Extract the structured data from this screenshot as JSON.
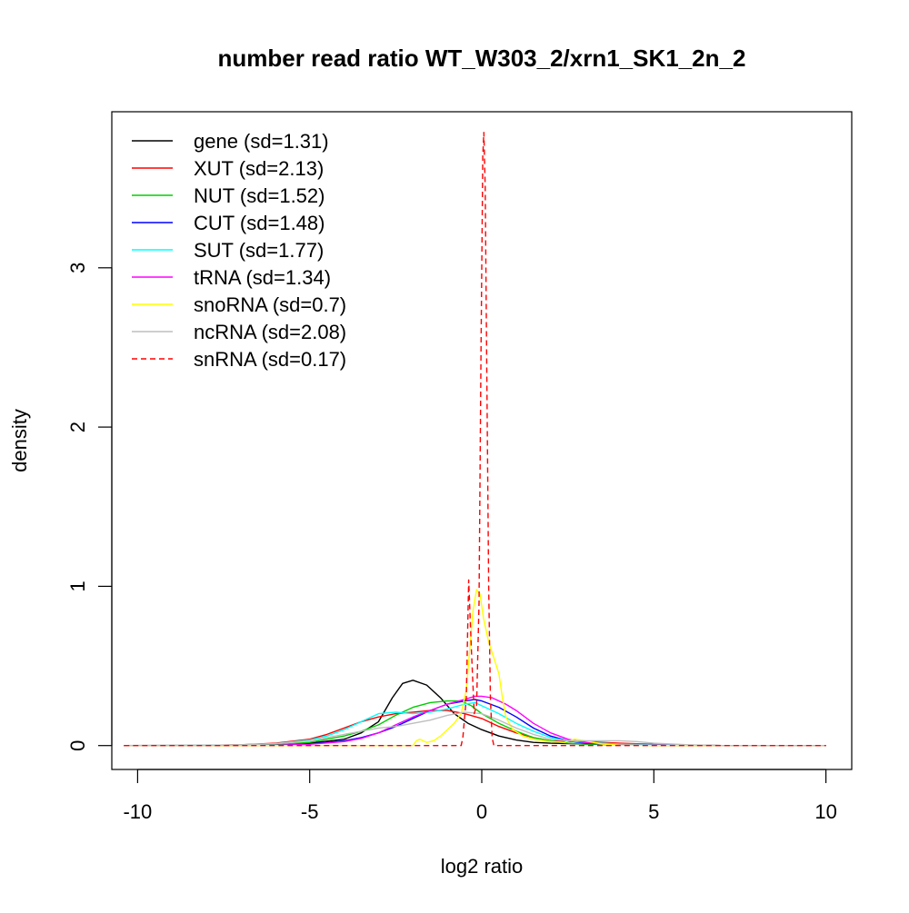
{
  "chart_data": {
    "type": "line",
    "title": "number read ratio WT_W303_2/xrn1_SK1_2n_2",
    "xlabel": "log2 ratio",
    "ylabel": "density",
    "xlim": [
      -10.75,
      10.75
    ],
    "ylim": [
      -0.15,
      3.98
    ],
    "x_ticks": [
      -10,
      -5,
      0,
      5,
      10
    ],
    "x_tick_labels": [
      "-10",
      "-5",
      "0",
      "5",
      "10"
    ],
    "y_ticks": [
      0,
      1,
      2,
      3
    ],
    "y_tick_labels": [
      "0",
      "1",
      "2",
      "3"
    ],
    "grid": false,
    "legend_position": "top-left",
    "series": [
      {
        "name": "gene (sd=1.31)",
        "color": "#000000",
        "dashed": false,
        "points": [
          [
            -10.4,
            0
          ],
          [
            -8,
            0
          ],
          [
            -6,
            0.003
          ],
          [
            -5,
            0.015
          ],
          [
            -4,
            0.04
          ],
          [
            -3.5,
            0.08
          ],
          [
            -3,
            0.15
          ],
          [
            -2.6,
            0.3
          ],
          [
            -2.3,
            0.39
          ],
          [
            -2,
            0.41
          ],
          [
            -1.6,
            0.38
          ],
          [
            -1.2,
            0.3
          ],
          [
            -0.8,
            0.2
          ],
          [
            -0.4,
            0.14
          ],
          [
            0,
            0.1
          ],
          [
            0.5,
            0.06
          ],
          [
            1,
            0.035
          ],
          [
            1.5,
            0.02
          ],
          [
            2,
            0.015
          ],
          [
            3,
            0.01
          ],
          [
            4,
            0.005
          ],
          [
            5,
            0.002
          ],
          [
            7,
            0
          ],
          [
            10,
            0
          ]
        ]
      },
      {
        "name": "XUT (sd=2.13)",
        "color": "#ff0000",
        "dashed": false,
        "points": [
          [
            -10.4,
            0
          ],
          [
            -8,
            0.002
          ],
          [
            -7,
            0.005
          ],
          [
            -6,
            0.015
          ],
          [
            -5,
            0.04
          ],
          [
            -4.5,
            0.07
          ],
          [
            -4,
            0.11
          ],
          [
            -3.5,
            0.15
          ],
          [
            -3,
            0.18
          ],
          [
            -2.5,
            0.2
          ],
          [
            -2,
            0.21
          ],
          [
            -1.5,
            0.22
          ],
          [
            -1,
            0.22
          ],
          [
            -0.5,
            0.2
          ],
          [
            0,
            0.17
          ],
          [
            0.5,
            0.12
          ],
          [
            1,
            0.08
          ],
          [
            1.5,
            0.05
          ],
          [
            2,
            0.03
          ],
          [
            2.5,
            0.025
          ],
          [
            3,
            0.025
          ],
          [
            3.5,
            0.02
          ],
          [
            4,
            0.015
          ],
          [
            5,
            0.008
          ],
          [
            6,
            0.003
          ],
          [
            7,
            0
          ],
          [
            10,
            0
          ]
        ]
      },
      {
        "name": "NUT (sd=1.52)",
        "color": "#00cd00",
        "dashed": false,
        "points": [
          [
            -10.4,
            0
          ],
          [
            -8,
            0
          ],
          [
            -6,
            0.005
          ],
          [
            -5,
            0.02
          ],
          [
            -4.5,
            0.04
          ],
          [
            -4,
            0.06
          ],
          [
            -3.5,
            0.09
          ],
          [
            -3,
            0.13
          ],
          [
            -2.5,
            0.19
          ],
          [
            -2,
            0.24
          ],
          [
            -1.5,
            0.27
          ],
          [
            -1,
            0.28
          ],
          [
            -0.6,
            0.28
          ],
          [
            -0.3,
            0.25
          ],
          [
            0,
            0.2
          ],
          [
            0.5,
            0.14
          ],
          [
            1,
            0.09
          ],
          [
            1.5,
            0.05
          ],
          [
            2,
            0.03
          ],
          [
            2.5,
            0.015
          ],
          [
            3,
            0.01
          ],
          [
            4,
            0.005
          ],
          [
            5,
            0.002
          ],
          [
            7,
            0
          ],
          [
            10,
            0
          ]
        ]
      },
      {
        "name": "CUT (sd=1.48)",
        "color": "#0000ff",
        "dashed": false,
        "points": [
          [
            -10.4,
            0
          ],
          [
            -8,
            0
          ],
          [
            -6,
            0.002
          ],
          [
            -5,
            0.01
          ],
          [
            -4,
            0.03
          ],
          [
            -3.5,
            0.05
          ],
          [
            -3,
            0.08
          ],
          [
            -2.5,
            0.12
          ],
          [
            -2,
            0.17
          ],
          [
            -1.5,
            0.22
          ],
          [
            -1,
            0.26
          ],
          [
            -0.5,
            0.28
          ],
          [
            -0.2,
            0.29
          ],
          [
            0,
            0.28
          ],
          [
            0.5,
            0.24
          ],
          [
            1,
            0.18
          ],
          [
            1.5,
            0.11
          ],
          [
            2,
            0.06
          ],
          [
            2.5,
            0.03
          ],
          [
            3,
            0.015
          ],
          [
            4,
            0.005
          ],
          [
            5,
            0.002
          ],
          [
            7,
            0
          ],
          [
            10,
            0
          ]
        ]
      },
      {
        "name": "SUT (sd=1.77)",
        "color": "#00ffff",
        "dashed": false,
        "points": [
          [
            -10.4,
            0
          ],
          [
            -8,
            0.001
          ],
          [
            -7,
            0.004
          ],
          [
            -6,
            0.012
          ],
          [
            -5,
            0.035
          ],
          [
            -4.5,
            0.06
          ],
          [
            -4,
            0.1
          ],
          [
            -3.5,
            0.15
          ],
          [
            -3,
            0.2
          ],
          [
            -2.5,
            0.21
          ],
          [
            -2,
            0.2
          ],
          [
            -1.5,
            0.21
          ],
          [
            -1,
            0.23
          ],
          [
            -0.5,
            0.26
          ],
          [
            -0.2,
            0.27
          ],
          [
            0,
            0.25
          ],
          [
            0.5,
            0.2
          ],
          [
            1,
            0.14
          ],
          [
            1.5,
            0.09
          ],
          [
            2,
            0.05
          ],
          [
            2.5,
            0.03
          ],
          [
            3,
            0.02
          ],
          [
            4,
            0.01
          ],
          [
            5,
            0.004
          ],
          [
            6,
            0.001
          ],
          [
            7,
            0
          ],
          [
            10,
            0
          ]
        ]
      },
      {
        "name": "tRNA (sd=1.34)",
        "color": "#ff00ff",
        "dashed": false,
        "points": [
          [
            -10.4,
            0
          ],
          [
            -8,
            0
          ],
          [
            -6,
            0.002
          ],
          [
            -5,
            0.008
          ],
          [
            -4,
            0.025
          ],
          [
            -3.5,
            0.045
          ],
          [
            -3,
            0.08
          ],
          [
            -2.5,
            0.13
          ],
          [
            -2,
            0.18
          ],
          [
            -1.5,
            0.22
          ],
          [
            -1,
            0.26
          ],
          [
            -0.5,
            0.29
          ],
          [
            -0.2,
            0.31
          ],
          [
            0,
            0.31
          ],
          [
            0.3,
            0.3
          ],
          [
            0.7,
            0.26
          ],
          [
            1,
            0.22
          ],
          [
            1.5,
            0.14
          ],
          [
            2,
            0.08
          ],
          [
            2.5,
            0.04
          ],
          [
            3,
            0.02
          ],
          [
            3.5,
            0.01
          ],
          [
            4,
            0.005
          ],
          [
            5,
            0.002
          ],
          [
            7,
            0
          ],
          [
            10,
            0
          ]
        ]
      },
      {
        "name": "snoRNA (sd=0.7)",
        "color": "#ffff00",
        "dashed": false,
        "points": [
          [
            -10.4,
            0
          ],
          [
            -6,
            0
          ],
          [
            -3,
            0
          ],
          [
            -2,
            0
          ],
          [
            -1.9,
            0.03
          ],
          [
            -1.8,
            0.04
          ],
          [
            -1.6,
            0.02
          ],
          [
            -1.4,
            0.03
          ],
          [
            -1.2,
            0.06
          ],
          [
            -1,
            0.1
          ],
          [
            -0.8,
            0.14
          ],
          [
            -0.6,
            0.2
          ],
          [
            -0.45,
            0.35
          ],
          [
            -0.35,
            0.6
          ],
          [
            -0.25,
            0.85
          ],
          [
            -0.15,
            0.98
          ],
          [
            -0.05,
            0.95
          ],
          [
            0.05,
            0.8
          ],
          [
            0.2,
            0.65
          ],
          [
            0.35,
            0.55
          ],
          [
            0.5,
            0.45
          ],
          [
            0.6,
            0.3
          ],
          [
            0.7,
            0.18
          ],
          [
            0.9,
            0.1
          ],
          [
            1.2,
            0.06
          ],
          [
            1.5,
            0.04
          ],
          [
            2,
            0.025
          ],
          [
            2.4,
            0.02
          ],
          [
            2.7,
            0.04
          ],
          [
            3,
            0.03
          ],
          [
            3.5,
            0.01
          ],
          [
            4,
            0.003
          ],
          [
            5,
            0
          ],
          [
            10,
            0
          ]
        ]
      },
      {
        "name": "ncRNA (sd=2.08)",
        "color": "#bebebe",
        "dashed": false,
        "points": [
          [
            -10.4,
            0
          ],
          [
            -8,
            0.001
          ],
          [
            -7,
            0.004
          ],
          [
            -6,
            0.012
          ],
          [
            -5,
            0.03
          ],
          [
            -4.5,
            0.05
          ],
          [
            -4,
            0.07
          ],
          [
            -3.5,
            0.09
          ],
          [
            -3,
            0.11
          ],
          [
            -2.5,
            0.12
          ],
          [
            -2,
            0.14
          ],
          [
            -1.5,
            0.16
          ],
          [
            -1,
            0.19
          ],
          [
            -0.5,
            0.21
          ],
          [
            0,
            0.2
          ],
          [
            0.5,
            0.16
          ],
          [
            1,
            0.11
          ],
          [
            1.5,
            0.07
          ],
          [
            2,
            0.04
          ],
          [
            2.5,
            0.03
          ],
          [
            3,
            0.03
          ],
          [
            4,
            0.03
          ],
          [
            4.5,
            0.025
          ],
          [
            5,
            0.015
          ],
          [
            6,
            0.005
          ],
          [
            7,
            0
          ],
          [
            10,
            0
          ]
        ]
      },
      {
        "name": "snRNA (sd=0.17)",
        "color": "#ff0000",
        "dashed": true,
        "points": [
          [
            -10.4,
            0
          ],
          [
            -8,
            0
          ],
          [
            -6,
            0
          ],
          [
            -4,
            0
          ],
          [
            -2,
            0
          ],
          [
            -0.6,
            0
          ],
          [
            -0.55,
            0.05
          ],
          [
            -0.45,
            0.3
          ],
          [
            -0.38,
            1.04
          ],
          [
            -0.3,
            0.6
          ],
          [
            -0.22,
            0.2
          ],
          [
            -0.15,
            0.25
          ],
          [
            -0.08,
            0.9
          ],
          [
            -0.02,
            2.5
          ],
          [
            0.03,
            3.7
          ],
          [
            0.06,
            3.85
          ],
          [
            0.1,
            3.5
          ],
          [
            0.14,
            2.5
          ],
          [
            0.2,
            1.0
          ],
          [
            0.25,
            0.3
          ],
          [
            0.3,
            0.05
          ],
          [
            0.35,
            0
          ],
          [
            1,
            0
          ],
          [
            3,
            0
          ],
          [
            5,
            0
          ],
          [
            10,
            0
          ]
        ]
      }
    ]
  }
}
